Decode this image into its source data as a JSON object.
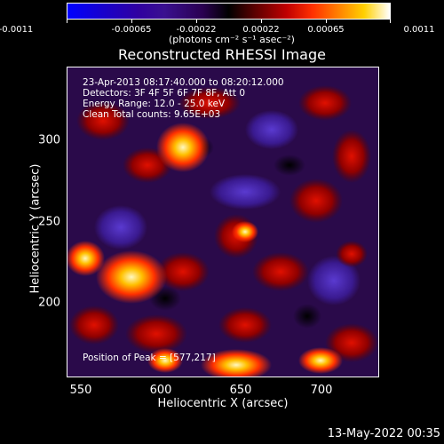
{
  "colorbar": {
    "ticks": [
      "-0.0011",
      "-0.00065",
      "-0.00022",
      "0.00022",
      "0.00065",
      "0.0011"
    ],
    "units": "(photons cm⁻² s⁻¹ asec⁻²)"
  },
  "title": "Reconstructed RHESSI Image",
  "annotations": {
    "time": "23-Apr-2013 08:17:40.000 to 08:20:12.000",
    "detectors": "Detectors: 3F 4F 5F 6F 7F 8F, Att 0",
    "energy": "Energy Range: 12.0 - 25.0 keV",
    "clean": "Clean     Total counts: 9.65E+03",
    "peak": "Position of Peak = [577,217]"
  },
  "axes": {
    "x_title": "Heliocentric X (arcsec)",
    "y_title": "Heliocentric Y (arcsec)",
    "x_ticks": [
      "550",
      "600",
      "650",
      "700"
    ],
    "y_ticks": [
      "300",
      "250",
      "200"
    ]
  },
  "footer": {
    "date": "13-May-2022 00:35"
  }
}
